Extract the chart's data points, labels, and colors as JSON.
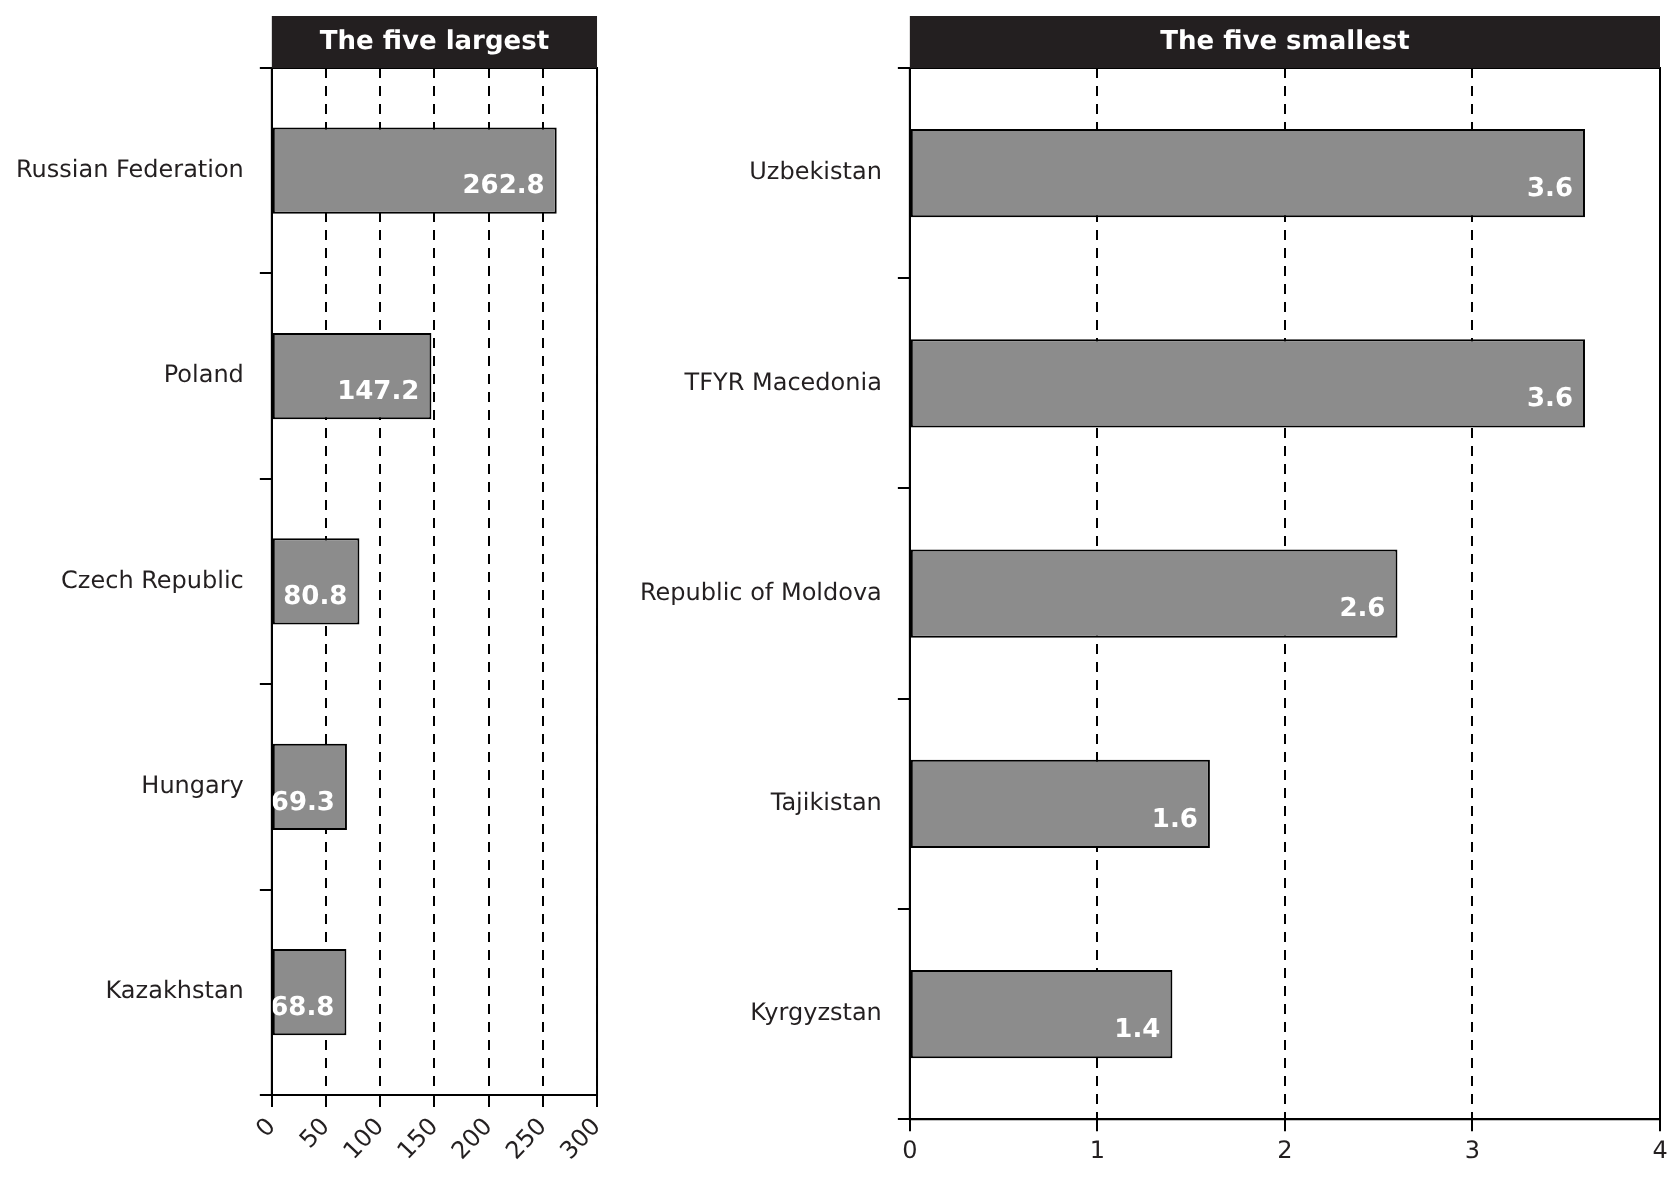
{
  "chart_data": [
    {
      "type": "bar",
      "orientation": "horizontal",
      "title": "The five largest",
      "categories": [
        "Russian Federation",
        "Poland",
        "Czech Republic",
        "Hungary",
        "Kazakhstan"
      ],
      "values": [
        262.8,
        147.2,
        80.8,
        69.3,
        68.8
      ],
      "color": "#8c8c8c",
      "xlim": [
        0,
        300
      ],
      "xticks": [
        0,
        50,
        100,
        150,
        200,
        250,
        300
      ],
      "grid": "x",
      "data_labels": true
    },
    {
      "type": "bar",
      "orientation": "horizontal",
      "title": "The five smallest",
      "categories": [
        "Uzbekistan",
        "TFYR Macedonia",
        "Republic of Moldova",
        "Tajikistan",
        "Kyrgyzstan"
      ],
      "values": [
        3.6,
        3.6,
        2.6,
        1.6,
        1.4
      ],
      "color": "#8c8c8c",
      "xlim": [
        0,
        4
      ],
      "xticks": [
        0,
        1,
        2,
        3,
        4
      ],
      "grid": "x",
      "data_labels": true
    }
  ]
}
